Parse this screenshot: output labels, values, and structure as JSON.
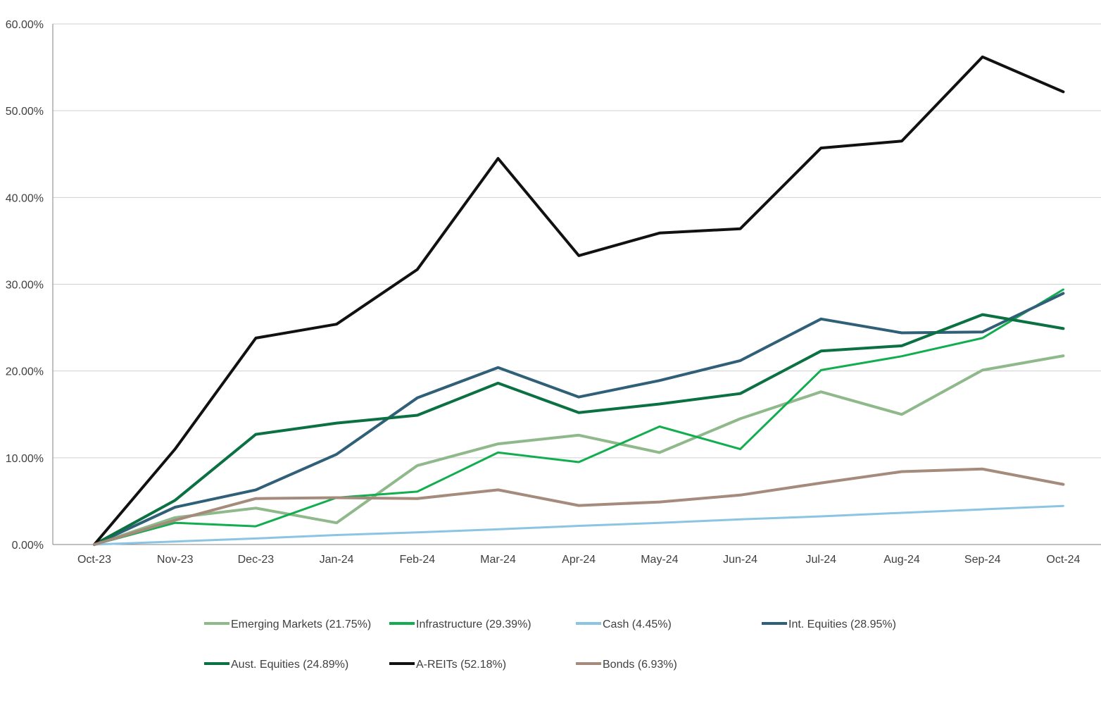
{
  "chart_data": {
    "type": "line",
    "title": "",
    "xlabel": "",
    "ylabel": "",
    "ylim": [
      0,
      60
    ],
    "y_ticks": [
      "0.00%",
      "10.00%",
      "20.00%",
      "30.00%",
      "40.00%",
      "50.00%",
      "60.00%"
    ],
    "y_tick_values": [
      0,
      10,
      20,
      30,
      40,
      50,
      60
    ],
    "categories": [
      "Oct-23",
      "Nov-23",
      "Dec-23",
      "Jan-24",
      "Feb-24",
      "Mar-24",
      "Apr-24",
      "May-24",
      "Jun-24",
      "Jul-24",
      "Aug-24",
      "Sep-24",
      "Oct-24"
    ],
    "grid": true,
    "legend_position": "bottom",
    "series": [
      {
        "name": "Emerging Markets (21.75%)",
        "color": "#8fb98b",
        "width": 4,
        "values": [
          0,
          3.1,
          4.2,
          2.5,
          9.1,
          11.6,
          12.6,
          10.6,
          14.5,
          17.6,
          15.0,
          20.1,
          21.75
        ]
      },
      {
        "name": "Infrastructure (29.39%)",
        "color": "#12ad4f",
        "width": 3,
        "values": [
          0,
          2.5,
          2.1,
          5.4,
          6.1,
          10.6,
          9.5,
          13.6,
          11.0,
          20.1,
          21.7,
          23.8,
          29.39
        ]
      },
      {
        "name": "Cash (4.45%)",
        "color": "#8cc4e3",
        "width": 3,
        "values": [
          0,
          0.35,
          0.7,
          1.1,
          1.4,
          1.75,
          2.15,
          2.5,
          2.9,
          3.25,
          3.65,
          4.05,
          4.45
        ]
      },
      {
        "name": "Int. Equities (28.95%)",
        "color": "#305f78",
        "width": 4,
        "values": [
          0,
          4.3,
          6.3,
          10.4,
          16.9,
          20.4,
          17.0,
          18.9,
          21.2,
          26.0,
          24.4,
          24.5,
          28.95
        ]
      },
      {
        "name": "Aust. Equities (24.89%)",
        "color": "#0b7042",
        "width": 4,
        "values": [
          0,
          5.1,
          12.7,
          14.0,
          14.9,
          18.6,
          15.2,
          16.2,
          17.4,
          22.3,
          22.9,
          26.5,
          24.89
        ]
      },
      {
        "name": "A-REITs (52.18%)",
        "color": "#111111",
        "width": 4,
        "values": [
          0,
          11.0,
          23.8,
          25.4,
          31.7,
          44.5,
          33.3,
          35.9,
          36.4,
          45.7,
          46.5,
          56.2,
          52.18
        ]
      },
      {
        "name": "Bonds (6.93%)",
        "color": "#a48b7c",
        "width": 4,
        "values": [
          0,
          2.8,
          5.3,
          5.4,
          5.3,
          6.3,
          4.5,
          4.9,
          5.7,
          7.1,
          8.4,
          8.7,
          6.93
        ]
      }
    ]
  },
  "colors": {
    "grid": "#d0d0d0",
    "axis": "#808080",
    "text": "#404040"
  }
}
